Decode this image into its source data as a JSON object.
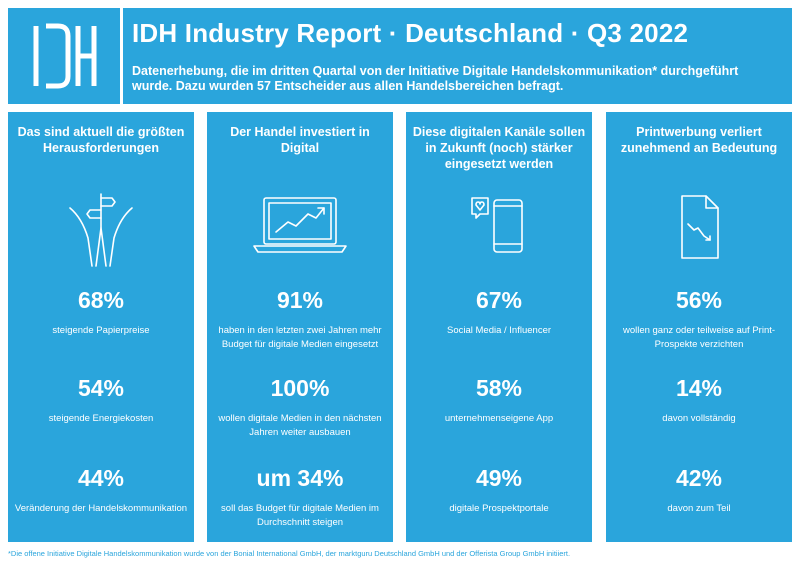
{
  "header": {
    "title": "IDH Industry Report · Deutschland · Q3 2022",
    "subtitle": "Datenerhebung, die im dritten Quartal von der Initiative Digitale Handelskommunikation* durchgeführt wurde. Dazu wurden 57 Entscheider aus allen Handelsbereichen befragt.",
    "logo_text": "IDH"
  },
  "colors": {
    "accent": "#2aa5dc",
    "text": "#ffffff"
  },
  "panels": [
    {
      "title": "Das sind aktuell die größten Herausforderungen",
      "icon": "crossroads-signpost-icon",
      "stats": [
        {
          "value": "68%",
          "label": "steigende Papierpreise"
        },
        {
          "value": "54%",
          "label": "steigende Energiekosten"
        },
        {
          "value": "44%",
          "label": "Veränderung der Handelskommunikation"
        }
      ]
    },
    {
      "title": "Der Handel investiert in Digital",
      "icon": "laptop-chart-icon",
      "stats": [
        {
          "value": "91%",
          "label": "haben in den letzten zwei Jahren mehr Budget für digitale Medien eingesetzt"
        },
        {
          "value": "100%",
          "label": "wollen digitale Medien in den nächsten Jahren weiter ausbauen"
        },
        {
          "value": "um 34%",
          "label": "soll das Budget für digitale Medien im Durchschnitt steigen"
        }
      ]
    },
    {
      "title": "Diese digitalen Kanäle sollen in Zukunft (noch) stärker eingesetzt werden",
      "icon": "smartphone-heart-icon",
      "stats": [
        {
          "value": "67%",
          "label": "Social Media / Influencer"
        },
        {
          "value": "58%",
          "label": "unternehmenseigene App"
        },
        {
          "value": "49%",
          "label": "digitale Prospektportale"
        }
      ]
    },
    {
      "title": "Printwerbung verliert zunehmend an Bedeutung",
      "icon": "document-decline-icon",
      "stats": [
        {
          "value": "56%",
          "label": "wollen ganz oder teilweise auf Print-Prospekte verzichten"
        },
        {
          "value": "14%",
          "label": "davon vollständig"
        },
        {
          "value": "42%",
          "label": "davon zum Teil"
        }
      ]
    }
  ],
  "footnote": "*Die offene Initiative Digitale Handelskommunikation wurde von der Bonial International GmbH, der marktguru Deutschland GmbH und der Offerista Group GmbH initiiert."
}
